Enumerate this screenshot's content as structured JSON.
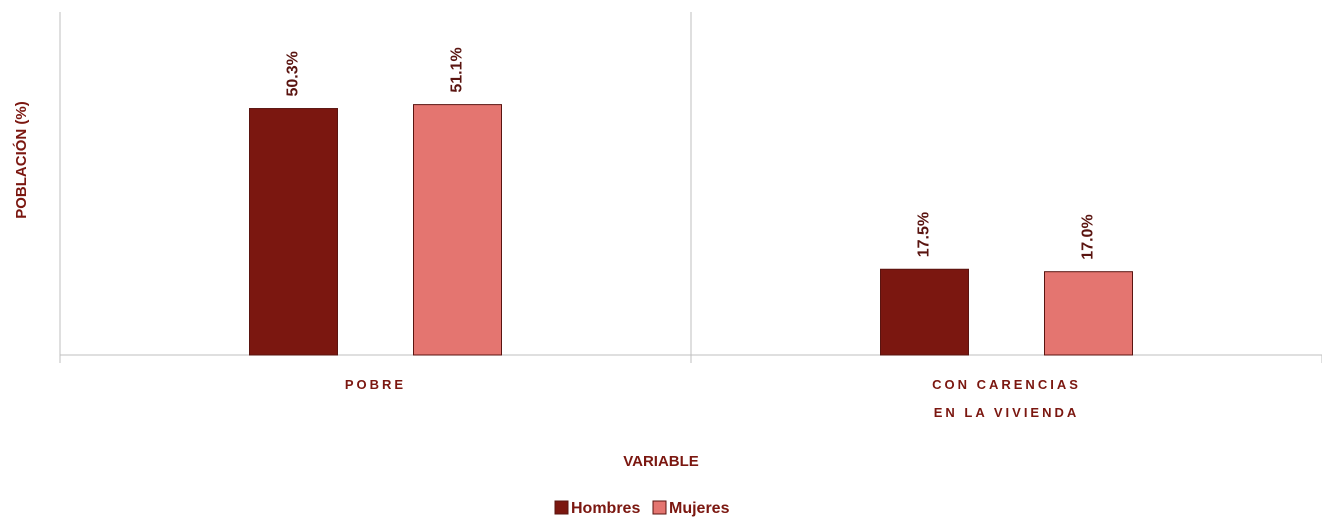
{
  "chart_data": {
    "type": "bar",
    "x_label": "VARIABLE",
    "y_label": "POBLACIÓN (%)",
    "categories": [
      "POBRE",
      "CON CARENCIAS\nEN LA VIVIENDA"
    ],
    "series": [
      {
        "name": "Hombres",
        "color": "#7b1710",
        "values": [
          50.3,
          17.5
        ],
        "value_labels": [
          "50.3%",
          "17.5%"
        ]
      },
      {
        "name": "Mujeres",
        "color": "#e47570",
        "values": [
          51.1,
          17.0
        ],
        "value_labels": [
          "51.1%",
          "17.0%"
        ]
      }
    ],
    "ylim": [
      0,
      70
    ],
    "legend": "bottom"
  }
}
